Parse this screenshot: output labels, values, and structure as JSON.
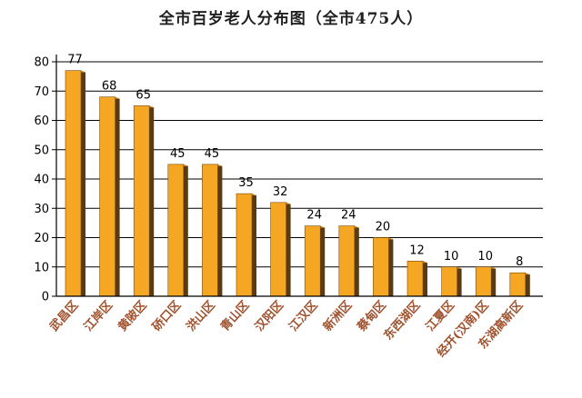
{
  "chart_data": {
    "type": "bar",
    "title": "全市百岁老人分布图（全市475人）",
    "categories": [
      "武昌区",
      "江岸区",
      "黄陂区",
      "硚口区",
      "洪山区",
      "青山区",
      "汉阳区",
      "江汉区",
      "新洲区",
      "蔡甸区",
      "东西湖区",
      "江夏区",
      "经开(汉南)区",
      "东湖高新区"
    ],
    "values": [
      77,
      68,
      65,
      45,
      45,
      35,
      32,
      24,
      24,
      20,
      12,
      10,
      10,
      8
    ],
    "ylim": [
      0,
      80
    ],
    "yticks": [
      0,
      10,
      20,
      30,
      40,
      50,
      60,
      70,
      80
    ],
    "grid": true,
    "xlabel": "",
    "ylabel": ""
  },
  "colors": {
    "bar_front": "#f5a623",
    "bar_side": "#5a3a12",
    "bar_top": "#d98a14",
    "category_label": "#a0522d",
    "grid": "#000000",
    "tick_label": "#000000",
    "value_label": "#000000"
  }
}
